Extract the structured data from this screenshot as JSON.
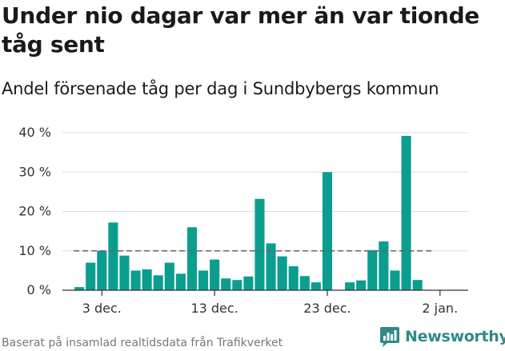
{
  "title": "Under nio dagar var mer än var tionde tåg sent",
  "subtitle": "Andel försenade tåg per dag i Sundbybergs kommun",
  "source": "Baserat på insamlad realtidsdata från Trafikverket",
  "brand": {
    "name": "Newsworthy",
    "logo_icon": "chart-bars-icon"
  },
  "colors": {
    "bar": "#0b9e8f",
    "reference_line": "#666666",
    "grid": "#dddddd",
    "axis": "#333333",
    "brand": "#2f8a86"
  },
  "chart_data": {
    "type": "bar",
    "title": "Andel försenade tåg per dag i Sundbybergs kommun",
    "xlabel": "",
    "ylabel": "",
    "ylim": [
      0,
      40
    ],
    "yticks": [
      0,
      10,
      20,
      30,
      40
    ],
    "ytick_labels": [
      "0 %",
      "10 %",
      "20 %",
      "30 %",
      "40 %"
    ],
    "x_day_range": [
      -1.5,
      34.5
    ],
    "xtick_days": [
      2,
      12,
      22,
      32
    ],
    "xtick_labels": [
      "3 dec.",
      "13 dec.",
      "23 dec.",
      "2 jan."
    ],
    "reference_line": {
      "value": 10,
      "style": "dashed",
      "day_range": [
        0,
        31
      ]
    },
    "series": [
      {
        "name": "Andel försenade tåg",
        "days": [
          0,
          1,
          2,
          3,
          4,
          5,
          6,
          7,
          8,
          9,
          10,
          11,
          12,
          13,
          14,
          15,
          16,
          17,
          18,
          19,
          20,
          21,
          22,
          24,
          25,
          26,
          27,
          28,
          29,
          30
        ],
        "values": [
          0.8,
          7.0,
          10.0,
          17.2,
          8.8,
          5.0,
          5.3,
          3.8,
          7.0,
          4.2,
          16.0,
          5.0,
          7.8,
          3.0,
          2.6,
          3.5,
          23.2,
          11.9,
          8.6,
          6.1,
          3.6,
          2.0,
          30.0,
          2.0,
          2.5,
          10.2,
          12.4,
          5.0,
          39.2,
          2.6
        ]
      }
    ]
  }
}
